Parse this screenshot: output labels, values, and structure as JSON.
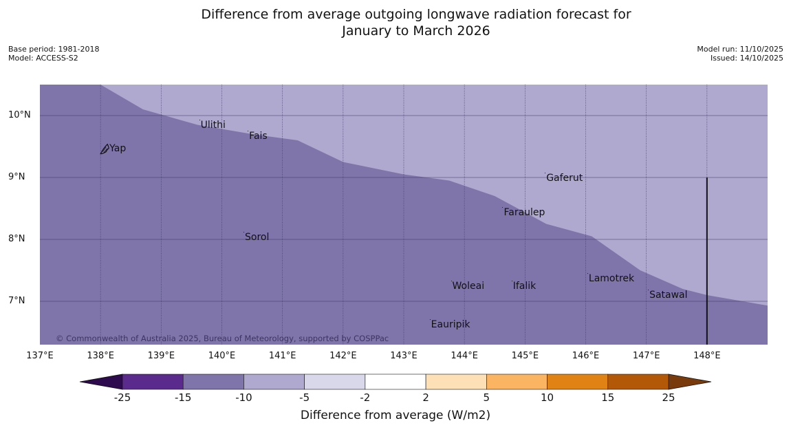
{
  "title": {
    "line1": "Difference from average outgoing longwave radiation forecast for",
    "line2": "January to March 2026"
  },
  "meta": {
    "base_period": "Base period: 1981-2018",
    "model": "Model: ACCESS-S2",
    "model_run": "Model run: 11/10/2025",
    "issued": "Issued: 14/10/2025"
  },
  "map": {
    "lon_range": [
      137,
      149
    ],
    "lat_range": [
      6.3,
      10.5
    ],
    "colors": {
      "background_band": "#afa9d0",
      "foreground_band": "#8075aa",
      "grid": "#3a3464"
    },
    "band_boundary": [
      {
        "lon": 138.0,
        "lat": 10.5
      },
      {
        "lon": 138.7,
        "lat": 10.1
      },
      {
        "lon": 139.6,
        "lat": 9.85
      },
      {
        "lon": 140.5,
        "lat": 9.7
      },
      {
        "lon": 141.25,
        "lat": 9.6
      },
      {
        "lon": 142.0,
        "lat": 9.25
      },
      {
        "lon": 143.0,
        "lat": 9.05
      },
      {
        "lon": 143.75,
        "lat": 8.95
      },
      {
        "lon": 144.5,
        "lat": 8.7
      },
      {
        "lon": 145.35,
        "lat": 8.25
      },
      {
        "lon": 146.1,
        "lat": 8.05
      },
      {
        "lon": 146.9,
        "lat": 7.5
      },
      {
        "lon": 147.6,
        "lat": 7.2
      },
      {
        "lon": 148.0,
        "lat": 7.1
      },
      {
        "lon": 149.0,
        "lat": 6.93
      }
    ],
    "marker_line": {
      "lon": 148.0,
      "lat_top": 9.0,
      "lat_bottom": 6.3
    },
    "places": [
      {
        "name": "Yap",
        "lon": 138.17,
        "lat": 9.47
      },
      {
        "name": "Ulithi",
        "lon": 139.65,
        "lat": 9.84
      },
      {
        "name": "Fais",
        "lon": 140.45,
        "lat": 9.67
      },
      {
        "name": "Gaferut",
        "lon": 145.35,
        "lat": 8.99
      },
      {
        "name": "Faraulep",
        "lon": 144.65,
        "lat": 8.43
      },
      {
        "name": "Sorol",
        "lon": 140.38,
        "lat": 8.03
      },
      {
        "name": "Lamotrek",
        "lon": 146.05,
        "lat": 7.37
      },
      {
        "name": "Woleai",
        "lon": 143.8,
        "lat": 7.24
      },
      {
        "name": "Ifalik",
        "lon": 144.8,
        "lat": 7.24
      },
      {
        "name": "Satawal",
        "lon": 147.05,
        "lat": 7.1
      },
      {
        "name": "Eauripik",
        "lon": 143.45,
        "lat": 6.62
      }
    ],
    "copyright": "© Commonwealth of Australia 2025, Bureau of Meteorology, supported by COSPPac",
    "lat_ticks": [
      {
        "lat": 10,
        "label": "10°N"
      },
      {
        "lat": 9,
        "label": "9°N"
      },
      {
        "lat": 8,
        "label": "8°N"
      },
      {
        "lat": 7,
        "label": "7°N"
      }
    ],
    "lon_ticks": [
      {
        "lon": 137,
        "label": "137°E"
      },
      {
        "lon": 138,
        "label": "138°E"
      },
      {
        "lon": 139,
        "label": "139°E"
      },
      {
        "lon": 140,
        "label": "140°E"
      },
      {
        "lon": 141,
        "label": "141°E"
      },
      {
        "lon": 142,
        "label": "142°E"
      },
      {
        "lon": 143,
        "label": "143°E"
      },
      {
        "lon": 144,
        "label": "144°E"
      },
      {
        "lon": 145,
        "label": "145°E"
      },
      {
        "lon": 146,
        "label": "146°E"
      },
      {
        "lon": 147,
        "label": "147°E"
      },
      {
        "lon": 148,
        "label": "148°E"
      }
    ]
  },
  "colorbar": {
    "title": "Difference from average (W/m2)",
    "below_color": "#2e0a4e",
    "above_color": "#7a3b0c",
    "bins": [
      {
        "from": -25,
        "to": -15,
        "color": "#5a2b8c"
      },
      {
        "from": -15,
        "to": -10,
        "color": "#8075aa"
      },
      {
        "from": -10,
        "to": -5,
        "color": "#afa9d0"
      },
      {
        "from": -5,
        "to": -2,
        "color": "#d9d8eb"
      },
      {
        "from": -2,
        "to": 2,
        "color": "#ffffff"
      },
      {
        "from": 2,
        "to": 5,
        "color": "#fde0b6"
      },
      {
        "from": 5,
        "to": 10,
        "color": "#fbb462"
      },
      {
        "from": 10,
        "to": 15,
        "color": "#e08214"
      },
      {
        "from": 15,
        "to": 25,
        "color": "#b35806"
      }
    ],
    "tick_labels": [
      "-25",
      "-15",
      "-10",
      "-5",
      "-2",
      "2",
      "5",
      "10",
      "15",
      "25"
    ]
  }
}
